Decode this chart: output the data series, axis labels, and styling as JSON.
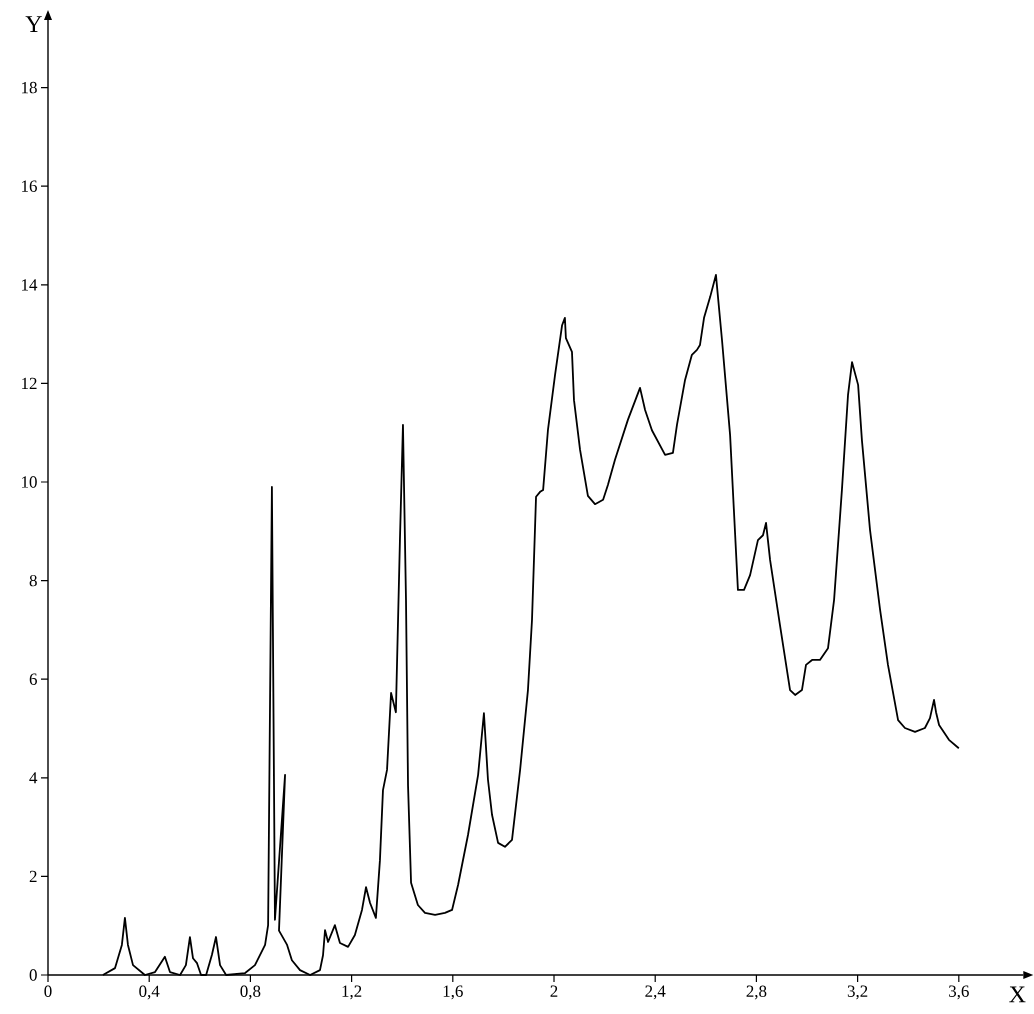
{
  "chart_data": {
    "type": "line",
    "xlabel": "X",
    "ylabel": "Y",
    "xlim": [
      0,
      3.855
    ],
    "ylim": [
      0,
      19.37
    ],
    "xticks": [
      0,
      {
        "value": 0.4,
        "label": "0,4"
      },
      {
        "value": 0.8,
        "label": "0,8"
      },
      {
        "value": 1.2,
        "label": "1,2"
      },
      {
        "value": 1.6,
        "label": "1,6"
      },
      2,
      {
        "value": 2.4,
        "label": "2,4"
      },
      {
        "value": 2.8,
        "label": "2,8"
      },
      {
        "value": 3.2,
        "label": "3,2"
      },
      {
        "value": 3.6,
        "label": "3,6"
      }
    ],
    "yticks": [
      0,
      2,
      4,
      6,
      8,
      10,
      12,
      14,
      16,
      18
    ],
    "grid": false,
    "marker": "none",
    "line_style": "solid",
    "series": [
      {
        "color": "#000000",
        "x": [
          0.217,
          0.265,
          0.292,
          0.304,
          0.316,
          0.336,
          0.383,
          0.423,
          0.462,
          0.482,
          0.522,
          0.545,
          0.561,
          0.573,
          0.589,
          0.605,
          0.625,
          0.648,
          0.664,
          0.68,
          0.704,
          0.779,
          0.818,
          0.858,
          0.87,
          0.885,
          0.897,
          0.937,
          0.913,
          0.945,
          0.964,
          0.996,
          1.036,
          1.075,
          1.087,
          1.095,
          1.107,
          1.134,
          1.154,
          1.186,
          1.213,
          1.241,
          1.257,
          1.273,
          1.296,
          1.312,
          1.324,
          1.34,
          1.356,
          1.375,
          1.391,
          1.403,
          1.415,
          1.423,
          1.435,
          1.462,
          1.49,
          1.53,
          1.569,
          1.597,
          1.621,
          1.66,
          1.7,
          1.723,
          1.739,
          1.755,
          1.779,
          1.806,
          1.834,
          1.866,
          1.897,
          1.913,
          1.929,
          1.945,
          1.957,
          1.976,
          2.004,
          2.032,
          2.043,
          2.047,
          2.071,
          2.079,
          2.103,
          2.134,
          2.162,
          2.194,
          2.213,
          2.241,
          2.292,
          2.34,
          2.36,
          2.387,
          2.439,
          2.47,
          2.486,
          2.518,
          2.545,
          2.565,
          2.577,
          2.593,
          2.617,
          2.64,
          2.664,
          2.696,
          2.727,
          2.751,
          2.775,
          2.806,
          2.826,
          2.838,
          2.854,
          2.893,
          2.933,
          2.953,
          2.98,
          2.996,
          3.02,
          3.051,
          3.083,
          3.107,
          3.138,
          3.162,
          3.178,
          3.202,
          3.217,
          3.249,
          3.289,
          3.32,
          3.36,
          3.387,
          3.427,
          3.466,
          3.486,
          3.502,
          3.51,
          3.522,
          3.561,
          3.6
        ],
        "values": [
          0,
          0.14,
          0.61,
          1.16,
          0.61,
          0.2,
          0,
          0.06,
          0.37,
          0.06,
          0,
          0.2,
          0.77,
          0.34,
          0.24,
          0,
          0,
          0.41,
          0.77,
          0.2,
          0,
          0.04,
          0.2,
          0.61,
          1.01,
          9.9,
          1.12,
          4.06,
          0.9,
          0.61,
          0.3,
          0.1,
          0,
          0.1,
          0.4,
          0.91,
          0.67,
          1.01,
          0.65,
          0.57,
          0.81,
          1.32,
          1.78,
          1.46,
          1.16,
          2.33,
          3.75,
          4.16,
          5.72,
          5.33,
          8.82,
          11.16,
          7.6,
          3.85,
          1.87,
          1.42,
          1.26,
          1.22,
          1.26,
          1.32,
          1.83,
          2.84,
          4.06,
          5.31,
          3.96,
          3.25,
          2.68,
          2.6,
          2.74,
          4.16,
          5.78,
          7.2,
          9.7,
          9.8,
          9.84,
          11.05,
          12.17,
          13.18,
          13.33,
          12.92,
          12.64,
          11.66,
          10.65,
          9.72,
          9.55,
          9.64,
          9.94,
          10.45,
          11.26,
          11.91,
          11.46,
          11.05,
          10.55,
          10.59,
          11.16,
          12.07,
          12.58,
          12.68,
          12.78,
          13.33,
          13.75,
          14.2,
          12.88,
          10.95,
          7.81,
          7.81,
          8.11,
          8.82,
          8.92,
          9.17,
          8.42,
          7.1,
          5.78,
          5.68,
          5.78,
          6.29,
          6.39,
          6.39,
          6.63,
          7.61,
          9.84,
          11.76,
          12.43,
          11.97,
          10.85,
          9.03,
          7.4,
          6.29,
          5.17,
          5.01,
          4.93,
          5.01,
          5.21,
          5.58,
          5.33,
          5.07,
          4.77,
          4.6
        ]
      }
    ]
  }
}
